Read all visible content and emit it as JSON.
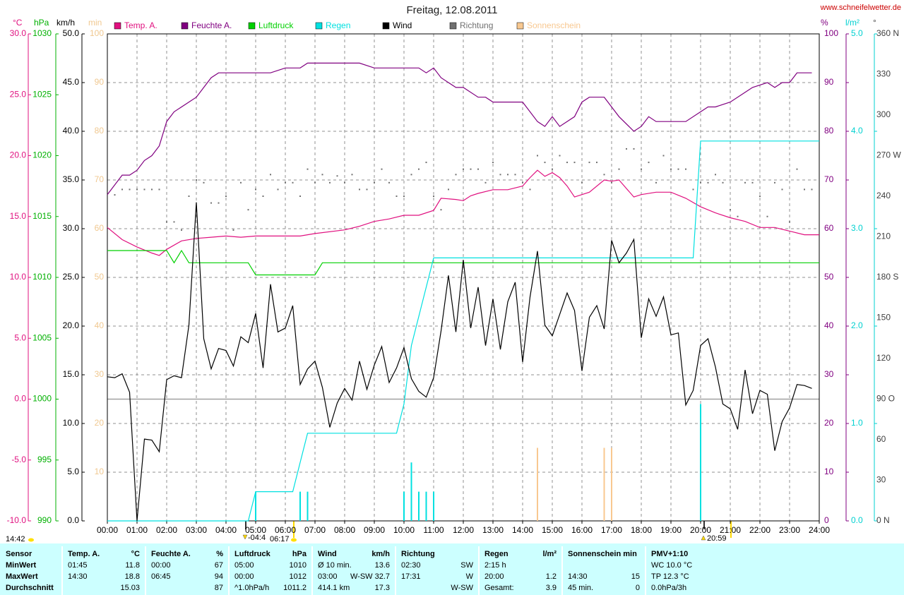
{
  "title": "Freitag, 12.08.2011",
  "site": "www.schneifelwetter.de",
  "chart_data": {
    "type": "line",
    "xlim": [
      0,
      24
    ],
    "xticks": [
      {
        "value": 0,
        "label": "00:00"
      },
      {
        "value": 1,
        "label": "01:00"
      },
      {
        "value": 2,
        "label": "02:00"
      },
      {
        "value": 3,
        "label": "03:00"
      },
      {
        "value": 4,
        "label": "04:00"
      },
      {
        "value": 5,
        "label": "05:00"
      },
      {
        "value": 6,
        "label": "06:00"
      },
      {
        "value": 7,
        "label": "07:00"
      },
      {
        "value": 8,
        "label": "08:00"
      },
      {
        "value": 9,
        "label": "09:00"
      },
      {
        "value": 10,
        "label": "10:00"
      },
      {
        "value": 11,
        "label": "11:00"
      },
      {
        "value": 12,
        "label": "12:00"
      },
      {
        "value": 13,
        "label": "13:00"
      },
      {
        "value": 14,
        "label": "14:00"
      },
      {
        "value": 15,
        "label": "15:00"
      },
      {
        "value": 16,
        "label": "16:00"
      },
      {
        "value": 17,
        "label": "17:00"
      },
      {
        "value": 18,
        "label": "18:00"
      },
      {
        "value": 19,
        "label": "19:00"
      },
      {
        "value": 20,
        "label": "20:00"
      },
      {
        "value": 21,
        "label": "21:00"
      },
      {
        "value": 22,
        "label": "22:00"
      },
      {
        "value": 23,
        "label": "23:00"
      },
      {
        "value": 24,
        "label": "24:00"
      }
    ],
    "grid": true,
    "axes": {
      "temp": {
        "unit": "°C",
        "color": "#e0107f",
        "lim": [
          -10,
          30
        ],
        "zero_line": true,
        "ticks": [
          {
            "value": -10,
            "label": "-10.0"
          },
          {
            "value": -5,
            "label": "-5.0"
          },
          {
            "value": 0,
            "label": "0.0"
          },
          {
            "value": 5,
            "label": "5.0"
          },
          {
            "value": 10,
            "label": "10.0"
          },
          {
            "value": 15,
            "label": "15.0"
          },
          {
            "value": 20,
            "label": "20.0"
          },
          {
            "value": 25,
            "label": "25.0"
          },
          {
            "value": 30,
            "label": "30.0"
          }
        ]
      },
      "hpa": {
        "unit": "hPa",
        "color": "#00b000",
        "lim": [
          990,
          1030
        ],
        "ticks": [
          990,
          995,
          1000,
          1005,
          1010,
          1015,
          1020,
          1025,
          1030
        ]
      },
      "kmh": {
        "unit": "km/h",
        "color": "#000000",
        "lim": [
          0,
          50
        ],
        "grid": true,
        "ticks": [
          {
            "value": 0,
            "label": "0.0"
          },
          {
            "value": 5,
            "label": "5.0"
          },
          {
            "value": 10,
            "label": "10.0"
          },
          {
            "value": 15,
            "label": "15.0"
          },
          {
            "value": 20,
            "label": "20.0"
          },
          {
            "value": 25,
            "label": "25.0"
          },
          {
            "value": 30,
            "label": "30.0"
          },
          {
            "value": 35,
            "label": "35.0"
          },
          {
            "value": 40,
            "label": "40.0"
          },
          {
            "value": 45,
            "label": "45.0"
          },
          {
            "value": 50,
            "label": "50.0"
          }
        ]
      },
      "min": {
        "unit": "min",
        "color": "#f0c890",
        "lim": [
          0,
          100
        ],
        "ticks": [
          10,
          20,
          30,
          40,
          50,
          60,
          70,
          80,
          90,
          100
        ]
      },
      "pct": {
        "unit": "%",
        "color": "#800080",
        "lim": [
          0,
          100
        ],
        "ticks": [
          0,
          10,
          20,
          30,
          40,
          50,
          60,
          70,
          80,
          90,
          100
        ]
      },
      "rain": {
        "unit": "l/m²",
        "color": "#00d0d0",
        "lim": [
          0,
          5
        ],
        "ticks": [
          {
            "value": 0,
            "label": "0.0"
          },
          {
            "value": 1,
            "label": "1.0"
          },
          {
            "value": 2,
            "label": "2.0"
          },
          {
            "value": 3,
            "label": "3.0"
          },
          {
            "value": 4,
            "label": "4.0"
          },
          {
            "value": 5,
            "label": "5.0"
          }
        ]
      },
      "deg": {
        "unit": "°",
        "color": "#404040",
        "lim": [
          0,
          360
        ],
        "ticks": [
          {
            "value": 0,
            "label": "0 N"
          },
          30,
          60,
          {
            "value": 90,
            "label": "90 O"
          },
          120,
          150,
          {
            "value": 180,
            "label": "180 S"
          },
          210,
          240,
          {
            "value": 270,
            "label": "270 W"
          },
          300,
          330,
          {
            "value": 360,
            "label": "360 N"
          }
        ]
      }
    },
    "series": [
      {
        "name": "Temp. A.",
        "color": "#e0107f",
        "axis": "temp",
        "type": "line",
        "x": [
          0,
          0.5,
          1,
          1.5,
          1.75,
          2,
          2.5,
          3,
          3.5,
          4,
          4.5,
          5,
          6,
          6.5,
          7,
          8,
          8.5,
          9,
          9.5,
          10,
          10.5,
          11,
          11.25,
          11.75,
          12,
          12.25,
          12.5,
          13,
          13.5,
          14,
          14.25,
          14.5,
          14.75,
          15,
          15.25,
          15.5,
          15.75,
          16,
          16.25,
          16.75,
          17,
          17.25,
          17.5,
          17.75,
          18,
          18.5,
          19,
          19.5,
          20,
          20.5,
          21,
          21.5,
          22,
          22.5,
          23,
          23.5,
          24
        ],
        "values": [
          14.1,
          13.1,
          12.5,
          12.0,
          11.8,
          12.3,
          13.0,
          13.2,
          13.3,
          13.4,
          13.3,
          13.4,
          13.4,
          13.4,
          13.6,
          13.9,
          14.2,
          14.6,
          14.8,
          15.1,
          15.1,
          15.5,
          16.5,
          16.4,
          16.3,
          16.7,
          16.9,
          17.2,
          17.2,
          17.5,
          18.2,
          18.8,
          18.3,
          18.6,
          18.2,
          17.5,
          16.6,
          16.8,
          17.0,
          18.0,
          17.9,
          18.0,
          17.3,
          16.6,
          16.8,
          17.0,
          17.0,
          16.5,
          15.8,
          15.3,
          14.9,
          14.6,
          14.1,
          14.1,
          13.8,
          13.5,
          13.5
        ]
      },
      {
        "name": "Feuchte A.",
        "color": "#800080",
        "axis": "pct",
        "type": "line",
        "x": [
          0,
          0.5,
          0.75,
          1,
          1.25,
          1.5,
          1.75,
          2,
          2.25,
          2.75,
          3,
          3.25,
          3.5,
          3.75,
          4.5,
          4.75,
          5,
          5.5,
          6,
          6.5,
          6.75,
          8.5,
          9,
          10,
          10.5,
          10.75,
          11,
          11.25,
          11.75,
          12,
          12.5,
          12.75,
          13,
          14,
          14.5,
          14.75,
          15,
          15.25,
          15.75,
          16,
          16.25,
          16.75,
          17,
          17.25,
          17.75,
          18,
          18.25,
          18.5,
          19.5,
          20,
          20.25,
          20.5,
          21,
          21.75,
          22.25,
          22.5,
          22.75,
          23,
          23.25,
          23.75
        ],
        "values": [
          67,
          71,
          71,
          72,
          74,
          75,
          77,
          82,
          84,
          86,
          87,
          89,
          91,
          92,
          92,
          92,
          92,
          92,
          93,
          93,
          94,
          94,
          93,
          93,
          93,
          92,
          93,
          91,
          89,
          89,
          87,
          87,
          86,
          86,
          82,
          81,
          83,
          81,
          83,
          86,
          87,
          87,
          85,
          83,
          80,
          81,
          83,
          82,
          82,
          84,
          85,
          85,
          86,
          89,
          90,
          89,
          90,
          90,
          92,
          92
        ]
      },
      {
        "name": "Luftdruck",
        "color": "#00d000",
        "axis": "hpa",
        "type": "line",
        "x": [
          0,
          2,
          2.25,
          2.5,
          2.75,
          4.75,
          5,
          7,
          7.25,
          24
        ],
        "values": [
          1012.2,
          1012.2,
          1011.2,
          1012.2,
          1011.2,
          1011.2,
          1010.2,
          1010.2,
          1011.2,
          1011.2
        ]
      },
      {
        "name": "Regen",
        "color": "#00e0e0",
        "axis": "rain",
        "type": "line",
        "x": [
          0,
          4.75,
          5,
          6.25,
          6.75,
          9.75,
          10,
          10.25,
          11,
          19.75,
          20,
          24
        ],
        "values": [
          0,
          0,
          0.3,
          0.3,
          0.9,
          0.9,
          1.2,
          1.8,
          2.7,
          2.7,
          3.9,
          3.9
        ],
        "interval": {
          "x": [
            5,
            6.5,
            6.75,
            10,
            10.25,
            10.5,
            10.75,
            11,
            20
          ],
          "values": [
            0.3,
            0.3,
            0.3,
            0.3,
            0.6,
            0.3,
            0.3,
            0.3,
            1.2
          ]
        }
      },
      {
        "name": "Wind",
        "color": "#000000",
        "axis": "kmh",
        "type": "line",
        "x": [
          0,
          0.25,
          0.5,
          0.75,
          1,
          1.25,
          1.5,
          1.75,
          2,
          2.25,
          2.5,
          2.75,
          3,
          3.25,
          3.5,
          3.75,
          4,
          4.25,
          4.5,
          4.75,
          5,
          5.25,
          5.5,
          5.75,
          6,
          6.25,
          6.5,
          6.75,
          7,
          7.25,
          7.5,
          7.75,
          8,
          8.25,
          8.5,
          8.75,
          9,
          9.25,
          9.5,
          9.75,
          10,
          10.25,
          10.5,
          10.75,
          11,
          11.25,
          11.5,
          11.75,
          12,
          12.25,
          12.5,
          12.75,
          13,
          13.25,
          13.5,
          13.75,
          14,
          14.25,
          14.5,
          14.75,
          15,
          15.25,
          15.5,
          15.75,
          16,
          16.25,
          16.5,
          16.75,
          17,
          17.25,
          17.5,
          17.75,
          18,
          18.25,
          18.5,
          18.75,
          19,
          19.25,
          19.5,
          19.75,
          20,
          20.25,
          20.5,
          20.75,
          21,
          21.25,
          21.5,
          21.75,
          22,
          22.25,
          22.5,
          22.75,
          23,
          23.25,
          23.5,
          23.75
        ],
        "values": [
          14.8,
          14.7,
          15.1,
          13.2,
          0.0,
          8.4,
          8.3,
          7.1,
          14.5,
          14.9,
          14.7,
          20.1,
          32.7,
          18.7,
          15.6,
          17.7,
          17.5,
          15.9,
          18.9,
          18.3,
          21.3,
          15.7,
          24.3,
          19.4,
          19.8,
          22.1,
          14.0,
          15.6,
          16.4,
          13.7,
          9.6,
          12.1,
          13.6,
          12.4,
          16.4,
          13.5,
          16.0,
          17.9,
          14.2,
          15.7,
          17.8,
          14.6,
          13.3,
          12.7,
          14.7,
          19.5,
          25.2,
          19.4,
          26.8,
          19.8,
          24.0,
          18.0,
          22.8,
          17.6,
          22.5,
          24.5,
          16.3,
          23.0,
          27.7,
          20.1,
          19.0,
          21.2,
          23.4,
          21.6,
          15.4,
          20.9,
          22.1,
          19.7,
          28.8,
          26.5,
          27.5,
          28.9,
          18.8,
          22.8,
          21.0,
          23.0,
          19.1,
          19.3,
          11.9,
          13.4,
          18.0,
          18.7,
          15.8,
          12.0,
          11.5,
          9.4,
          15.5,
          11.0,
          13.4,
          13.0,
          7.2,
          10.2,
          11.6,
          14.0,
          13.9,
          13.6
        ]
      },
      {
        "name": "Richtung",
        "color": "#707070",
        "axis": "deg",
        "type": "dots",
        "x": [
          0.25,
          0.5,
          0.75,
          1,
          1.25,
          1.5,
          1.75,
          2,
          2.25,
          2.5,
          2.75,
          3,
          3.25,
          3.5,
          3.75,
          4,
          4.25,
          4.5,
          4.75,
          5,
          5.25,
          5.5,
          5.75,
          6,
          6.25,
          6.5,
          6.75,
          7,
          7.25,
          7.5,
          7.75,
          8,
          8.25,
          8.5,
          8.75,
          9,
          9.25,
          9.5,
          9.75,
          10,
          10.25,
          10.5,
          10.75,
          11,
          11.25,
          11.5,
          11.75,
          12,
          12.25,
          12.5,
          12.75,
          13,
          13.25,
          13.5,
          13.75,
          14,
          14.25,
          14.5,
          14.75,
          15,
          15.25,
          15.5,
          15.75,
          16,
          16.25,
          16.5,
          16.75,
          17,
          17.25,
          17.5,
          17.75,
          18,
          18.25,
          18.5,
          18.75,
          19,
          19.25,
          19.5,
          19.75,
          20,
          20.25,
          20.5,
          20.75,
          21,
          21.25,
          21.5,
          21.75,
          22,
          22.25,
          22.5,
          22.75,
          23,
          23.25,
          23.5,
          23.75
        ],
        "values": [
          241,
          245,
          245,
          245,
          245,
          245,
          245,
          221,
          221,
          215,
          240,
          252,
          250,
          235,
          235,
          240,
          215,
          250,
          230,
          245,
          240,
          256,
          245,
          250,
          250,
          240,
          260,
          250,
          256,
          250,
          255,
          250,
          256,
          245,
          245,
          250,
          260,
          250,
          240,
          240,
          256,
          260,
          265,
          240,
          230,
          245,
          256,
          260,
          260,
          260,
          250,
          265,
          256,
          256,
          256,
          250,
          245,
          270,
          265,
          260,
          270,
          265,
          265,
          250,
          265,
          265,
          256,
          250,
          260,
          275,
          275,
          260,
          265,
          250,
          270,
          260,
          260,
          260,
          245,
          250,
          250,
          256,
          250,
          230,
          225,
          250,
          250,
          240,
          225,
          250,
          245,
          221,
          260,
          245,
          245
        ]
      },
      {
        "name": "Sonnenschein",
        "color": "#f8c890",
        "axis": "min",
        "type": "bar",
        "x": [
          14.5,
          16.75,
          17
        ],
        "values": [
          15,
          15,
          15
        ]
      }
    ]
  },
  "sun_times": [
    "14:42",
    "-04:4",
    "06:17",
    "20:59"
  ],
  "table": {
    "header": [
      [
        "Sensor"
      ],
      [
        "Temp. A.",
        "°C"
      ],
      [
        "Feuchte A.",
        "%"
      ],
      [
        "Luftdruck",
        "hPa"
      ],
      [
        "Wind",
        "km/h"
      ],
      [
        "Richtung"
      ],
      [
        "Regen",
        "l/m²"
      ],
      [
        "Sonnenschein min"
      ],
      [
        "PMV+1:10"
      ]
    ],
    "rows": [
      {
        "label": "MinWert",
        "cells": [
          [
            "01:45",
            "11.8"
          ],
          [
            "00:00",
            "67"
          ],
          [
            "05:00",
            "1010"
          ],
          [
            "Ø 10 min.",
            "13.6"
          ],
          [
            "02:30",
            "SW"
          ],
          [
            "2:15 h"
          ],
          null,
          [
            "WC 10.0 °C"
          ]
        ]
      },
      {
        "label": "MaxWert",
        "cells": [
          [
            "14:30",
            "18.8"
          ],
          [
            "06:45",
            "94"
          ],
          [
            "00:00",
            "1012"
          ],
          [
            "03:00",
            "W-SW",
            "32.7"
          ],
          [
            "17:31",
            "W"
          ],
          [
            "20:00",
            "1.2"
          ],
          [
            "14:30",
            "15"
          ],
          [
            "TP 12.3 °C"
          ]
        ]
      },
      {
        "label": "Durchschnitt",
        "cells": [
          [
            "15.03"
          ],
          [
            "87"
          ],
          [
            "^1.0hPa/h",
            "1011.2"
          ],
          [
            "414.1 km",
            "17.3"
          ],
          [
            "W-SW"
          ],
          [
            "Gesamt:",
            "3.9"
          ],
          [
            "45 min.",
            "0"
          ],
          [
            "0.0hPa/3h"
          ]
        ]
      }
    ]
  }
}
